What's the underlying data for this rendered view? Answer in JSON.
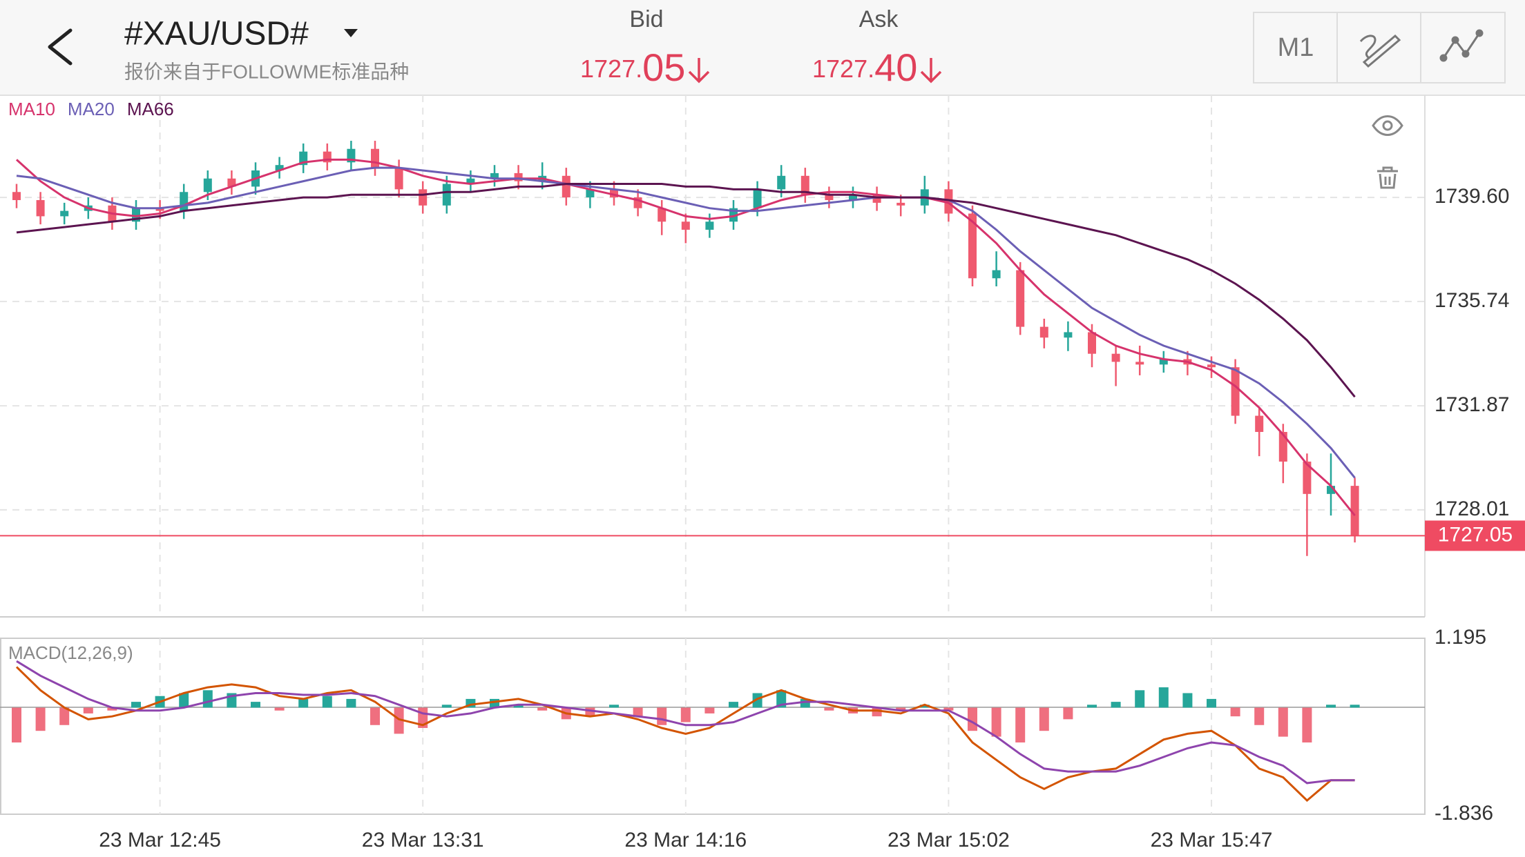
{
  "header": {
    "title": "#XAU/USD#",
    "subtitle": "报价来自于FOLLOWME标准品种",
    "bid": {
      "name": "Bid",
      "price": 1727.05
    },
    "ask": {
      "name": "Ask",
      "price": {
        "value": 1727.4,
        "label": "1727.40"
      }
    }
  },
  "toolbar": {
    "timeframe": "M1"
  },
  "chart_data": {
    "type": "candlestick",
    "categories": [
      null,
      null,
      null,
      null,
      null,
      null,
      "23 Mar 12:45",
      null,
      null,
      null,
      null,
      null,
      null,
      null,
      null,
      null,
      null,
      "23 Mar 13:31",
      null,
      null,
      null,
      null,
      null,
      null,
      null,
      null,
      null,
      null,
      "23 Mar 14:16",
      null,
      null,
      null,
      null,
      null,
      null,
      null,
      null,
      null,
      null,
      "23 Mar 15:02",
      null,
      null,
      null,
      null,
      null,
      null,
      null,
      null,
      null,
      null,
      "23 Mar 15:47",
      null,
      null,
      null,
      null,
      null,
      null
    ],
    "open": [
      1739.8,
      1739.5,
      1738.9,
      1739.1,
      1739.3,
      1738.7,
      1739.2,
      1739.1,
      1739.8,
      1740.3,
      1740.0,
      1740.6,
      1740.8,
      1741.3,
      1740.9,
      1741.4,
      1740.7,
      1739.9,
      1739.3,
      1740.1,
      1740.3,
      1740.5,
      1740.2,
      1740.4,
      1739.6,
      1739.9,
      1739.6,
      1739.2,
      1738.7,
      1738.4,
      1738.7,
      1739.2,
      1739.9,
      1740.4,
      1739.7,
      1739.5,
      1739.7,
      1739.4,
      1739.3,
      1739.9,
      1739.0,
      1736.6,
      1736.9,
      1734.8,
      1734.4,
      1734.6,
      1733.8,
      1733.5,
      1733.4,
      1733.6,
      1733.4,
      1733.3,
      1731.5,
      1730.9,
      1729.8,
      1728.6,
      1728.9
    ],
    "high": [
      1740.1,
      1739.8,
      1739.4,
      1739.6,
      1739.6,
      1739.5,
      1739.5,
      1740.1,
      1740.6,
      1740.6,
      1740.9,
      1741.1,
      1741.6,
      1741.6,
      1741.7,
      1741.7,
      1741.0,
      1740.2,
      1740.4,
      1740.6,
      1740.8,
      1740.8,
      1740.9,
      1740.7,
      1740.2,
      1740.2,
      1739.9,
      1739.5,
      1739.0,
      1739.0,
      1739.5,
      1740.2,
      1740.8,
      1740.7,
      1740.0,
      1740.0,
      1740.0,
      1739.7,
      1740.4,
      1740.2,
      1739.3,
      1737.6,
      1737.2,
      1735.1,
      1735.0,
      1734.9,
      1734.1,
      1734.1,
      1733.9,
      1733.9,
      1733.7,
      1733.6,
      1731.8,
      1731.2,
      1730.1,
      1730.1,
      1729.2
    ],
    "low": [
      1739.2,
      1738.6,
      1738.6,
      1738.8,
      1738.4,
      1738.4,
      1738.8,
      1738.8,
      1739.5,
      1739.7,
      1739.7,
      1740.3,
      1740.5,
      1740.6,
      1740.6,
      1740.4,
      1739.6,
      1739.0,
      1739.0,
      1739.8,
      1740.0,
      1739.9,
      1739.9,
      1739.3,
      1739.2,
      1739.3,
      1738.9,
      1738.2,
      1737.9,
      1738.1,
      1738.4,
      1738.9,
      1739.6,
      1739.4,
      1739.2,
      1739.2,
      1739.1,
      1738.9,
      1739.0,
      1738.7,
      1736.3,
      1736.3,
      1734.5,
      1734.0,
      1733.9,
      1733.3,
      1732.6,
      1733.0,
      1733.1,
      1733.0,
      1732.9,
      1731.2,
      1730.0,
      1729.0,
      1726.3,
      1727.8,
      1726.8
    ],
    "close": [
      1739.5,
      1738.9,
      1739.1,
      1739.3,
      1738.7,
      1739.2,
      1739.1,
      1739.8,
      1740.3,
      1740.0,
      1740.6,
      1740.8,
      1741.3,
      1740.9,
      1741.4,
      1740.7,
      1739.9,
      1739.3,
      1740.1,
      1740.3,
      1740.5,
      1740.2,
      1740.4,
      1739.6,
      1739.9,
      1739.6,
      1739.2,
      1738.7,
      1738.4,
      1738.7,
      1739.2,
      1739.9,
      1740.4,
      1739.7,
      1739.5,
      1739.7,
      1739.4,
      1739.3,
      1739.9,
      1739.0,
      1736.6,
      1736.9,
      1734.8,
      1734.4,
      1734.6,
      1733.8,
      1733.5,
      1733.4,
      1733.6,
      1733.4,
      1733.3,
      1731.5,
      1730.9,
      1729.8,
      1728.6,
      1728.9,
      1727.05
    ],
    "up_color": "#26a69a",
    "down_color": "#ef5a6f",
    "ylim": [
      1724.04,
      1743.39
    ],
    "yticks": [
      {
        "value": 1739.6,
        "label": "1739.60"
      },
      1735.74,
      1731.87,
      1728.01
    ],
    "last_price": 1727.05,
    "last_price_color": "#ef4b62",
    "series": [
      {
        "name": "MA10",
        "color": "#d6336c",
        "values": [
          1741.0,
          1740.2,
          1739.6,
          1739.2,
          1739.0,
          1738.9,
          1739.0,
          1739.3,
          1739.7,
          1740.0,
          1740.3,
          1740.6,
          1740.9,
          1741.0,
          1741.0,
          1740.9,
          1740.7,
          1740.4,
          1740.2,
          1740.1,
          1740.2,
          1740.3,
          1740.3,
          1740.1,
          1739.9,
          1739.7,
          1739.5,
          1739.2,
          1738.9,
          1738.8,
          1738.9,
          1739.2,
          1739.5,
          1739.7,
          1739.8,
          1739.8,
          1739.7,
          1739.6,
          1739.6,
          1739.4,
          1738.7,
          1737.9,
          1736.9,
          1736.0,
          1735.3,
          1734.6,
          1734.1,
          1733.8,
          1733.6,
          1733.5,
          1733.2,
          1732.6,
          1731.8,
          1730.8,
          1729.7,
          1728.9,
          1727.8
        ]
      },
      {
        "name": "MA20",
        "color": "#6b5fb5",
        "values": [
          1740.4,
          1740.3,
          1740.0,
          1739.7,
          1739.4,
          1739.2,
          1739.2,
          1739.3,
          1739.4,
          1739.6,
          1739.8,
          1740.0,
          1740.2,
          1740.4,
          1740.6,
          1740.7,
          1740.7,
          1740.6,
          1740.5,
          1740.4,
          1740.3,
          1740.3,
          1740.2,
          1740.1,
          1740.0,
          1739.9,
          1739.8,
          1739.6,
          1739.4,
          1739.2,
          1739.1,
          1739.1,
          1739.2,
          1739.3,
          1739.4,
          1739.5,
          1739.6,
          1739.6,
          1739.6,
          1739.5,
          1739.1,
          1738.4,
          1737.6,
          1736.9,
          1736.2,
          1735.5,
          1735.0,
          1734.5,
          1734.1,
          1733.8,
          1733.5,
          1733.2,
          1732.7,
          1732.0,
          1731.2,
          1730.3,
          1729.2
        ]
      },
      {
        "name": "MA66",
        "color": "#5c1450",
        "values": [
          1738.3,
          1738.4,
          1738.5,
          1738.6,
          1738.7,
          1738.8,
          1738.9,
          1739.1,
          1739.2,
          1739.3,
          1739.4,
          1739.5,
          1739.6,
          1739.6,
          1739.7,
          1739.7,
          1739.7,
          1739.7,
          1739.8,
          1739.8,
          1739.9,
          1740.0,
          1740.0,
          1740.1,
          1740.1,
          1740.1,
          1740.1,
          1740.1,
          1740.0,
          1740.0,
          1739.9,
          1739.9,
          1739.8,
          1739.8,
          1739.7,
          1739.7,
          1739.6,
          1739.6,
          1739.6,
          1739.5,
          1739.4,
          1739.2,
          1739.0,
          1738.8,
          1738.6,
          1738.4,
          1738.2,
          1737.9,
          1737.6,
          1737.3,
          1736.9,
          1736.4,
          1735.8,
          1735.1,
          1734.3,
          1733.3,
          1732.2
        ]
      }
    ],
    "macd": {
      "name": "MACD(12,26,9)",
      "y2lim": [
        -1.836,
        1.195
      ],
      "y2ticks": [
        1.195,
        -1.836
      ],
      "histogram": [
        -0.6,
        -0.4,
        -0.3,
        -0.1,
        -0.05,
        0.1,
        0.2,
        0.25,
        0.3,
        0.25,
        0.1,
        -0.05,
        0.15,
        0.2,
        0.15,
        -0.3,
        -0.45,
        -0.35,
        0.05,
        0.15,
        0.15,
        0.05,
        -0.05,
        -0.2,
        -0.15,
        0.05,
        -0.15,
        -0.3,
        -0.25,
        -0.1,
        0.1,
        0.25,
        0.3,
        0.15,
        -0.05,
        -0.1,
        -0.15,
        -0.05,
        0.05,
        -0.05,
        -0.4,
        -0.5,
        -0.6,
        -0.4,
        -0.2,
        0.05,
        0.1,
        0.3,
        0.35,
        0.25,
        0.15,
        -0.15,
        -0.3,
        -0.5,
        -0.6,
        0.05,
        0.05
      ],
      "up_color": "#26a69a",
      "down_color": "#ef6f7f",
      "series": [
        {
          "color": "#d35400",
          "values": [
            0.7,
            0.3,
            0.0,
            -0.2,
            -0.15,
            -0.05,
            0.1,
            0.25,
            0.35,
            0.4,
            0.35,
            0.2,
            0.15,
            0.25,
            0.3,
            0.1,
            -0.2,
            -0.3,
            -0.1,
            0.05,
            0.1,
            0.15,
            0.05,
            -0.1,
            -0.15,
            -0.1,
            -0.2,
            -0.35,
            -0.45,
            -0.35,
            -0.1,
            0.15,
            0.3,
            0.15,
            0.05,
            -0.05,
            -0.05,
            -0.1,
            0.05,
            -0.1,
            -0.6,
            -0.9,
            -1.2,
            -1.4,
            -1.2,
            -1.1,
            -1.05,
            -0.8,
            -0.55,
            -0.45,
            -0.4,
            -0.65,
            -1.05,
            -1.2,
            -1.6,
            -1.25,
            -1.25
          ]
        },
        {
          "color": "#8e44ad",
          "values": [
            0.8,
            0.55,
            0.35,
            0.15,
            0.0,
            -0.05,
            -0.05,
            0.0,
            0.1,
            0.2,
            0.25,
            0.25,
            0.22,
            0.22,
            0.25,
            0.2,
            0.05,
            -0.1,
            -0.15,
            -0.1,
            0.0,
            0.05,
            0.05,
            0.0,
            -0.05,
            -0.1,
            -0.15,
            -0.2,
            -0.3,
            -0.3,
            -0.25,
            -0.1,
            0.05,
            0.1,
            0.1,
            0.05,
            0.0,
            -0.05,
            -0.05,
            -0.05,
            -0.25,
            -0.5,
            -0.8,
            -1.05,
            -1.1,
            -1.1,
            -1.1,
            -1.0,
            -0.85,
            -0.7,
            -0.6,
            -0.65,
            -0.85,
            -1.0,
            -1.3,
            -1.25,
            -1.25
          ]
        }
      ]
    }
  }
}
